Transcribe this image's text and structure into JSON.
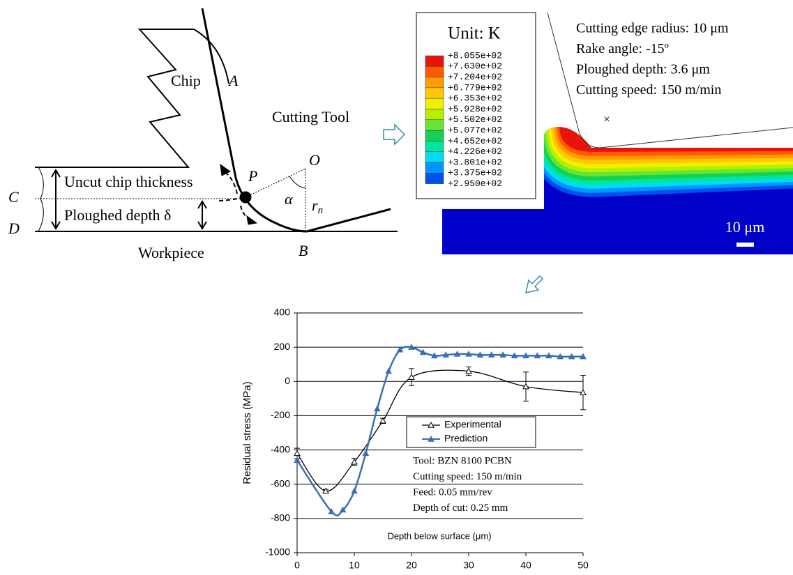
{
  "diagram": {
    "chip": "Chip",
    "a": "A",
    "cutting_tool": "Cutting Tool",
    "p": "P",
    "o": "O",
    "alpha": "α",
    "rn": "r",
    "rn_sub": "n",
    "uncut": "Uncut chip thickness",
    "ploughed": "Ploughed depth δ",
    "c": "C",
    "d": "D",
    "b": "B",
    "workpiece": "Workpiece"
  },
  "contour": {
    "legend_title": "Unit: K",
    "legend_labels": [
      "+8.055e+02",
      "+7.630e+02",
      "+7.204e+02",
      "+6.779e+02",
      "+6.353e+02",
      "+5.928e+02",
      "+5.502e+02",
      "+5.077e+02",
      "+4.652e+02",
      "+4.226e+02",
      "+3.801e+02",
      "+3.375e+02",
      "+2.950e+02"
    ],
    "colors": [
      "#e8140c",
      "#ff5a00",
      "#ff9a00",
      "#ffc800",
      "#f0f000",
      "#b4f000",
      "#64e632",
      "#14d250",
      "#00e6a0",
      "#00dcf0",
      "#0096ff",
      "#0050f0"
    ],
    "notes": [
      "Cutting edge radius: 10 μm",
      "Rake angle: -15º",
      "Ploughed depth: 3.6 μm",
      "Cutting speed: 150 m/min"
    ],
    "scale_label": "10 μm"
  },
  "chart_data": {
    "type": "line",
    "x_label": "Depth below surface (μm)",
    "y_label": "Residual stress (MPa)",
    "xlim": [
      0,
      50
    ],
    "xticks": [
      0,
      10,
      20,
      30,
      40,
      50
    ],
    "ylim": [
      -1000,
      400
    ],
    "yticks": [
      -1000,
      -800,
      -600,
      -400,
      -200,
      0,
      200,
      400
    ],
    "grid": true,
    "legend": "center",
    "series": [
      {
        "name": "Experimental",
        "color": "#000000",
        "marker": "open",
        "x": [
          0,
          5,
          10,
          15,
          20,
          30,
          40,
          50
        ],
        "values": [
          -420,
          -640,
          -470,
          -230,
          25,
          60,
          -30,
          -65
        ],
        "errors": [
          30,
          10,
          20,
          15,
          50,
          25,
          85,
          100
        ]
      },
      {
        "name": "Prediction",
        "color": "#3a6eb4",
        "marker": "filled",
        "x": [
          0,
          6,
          8,
          10,
          12,
          14,
          16,
          18,
          20,
          22,
          24,
          26,
          28,
          30,
          32,
          34,
          36,
          38,
          40,
          42,
          44,
          46,
          48,
          50
        ],
        "values": [
          -460,
          -760,
          -750,
          -640,
          -420,
          -160,
          60,
          185,
          200,
          170,
          150,
          155,
          160,
          160,
          155,
          155,
          155,
          150,
          150,
          150,
          150,
          145,
          145,
          145
        ]
      }
    ],
    "annotations": [
      "Tool: BZN 8100 PCBN",
      "Cutting speed: 150 m/min",
      "Feed: 0.05 mm/rev",
      "Depth of cut: 0.25 mm"
    ]
  }
}
